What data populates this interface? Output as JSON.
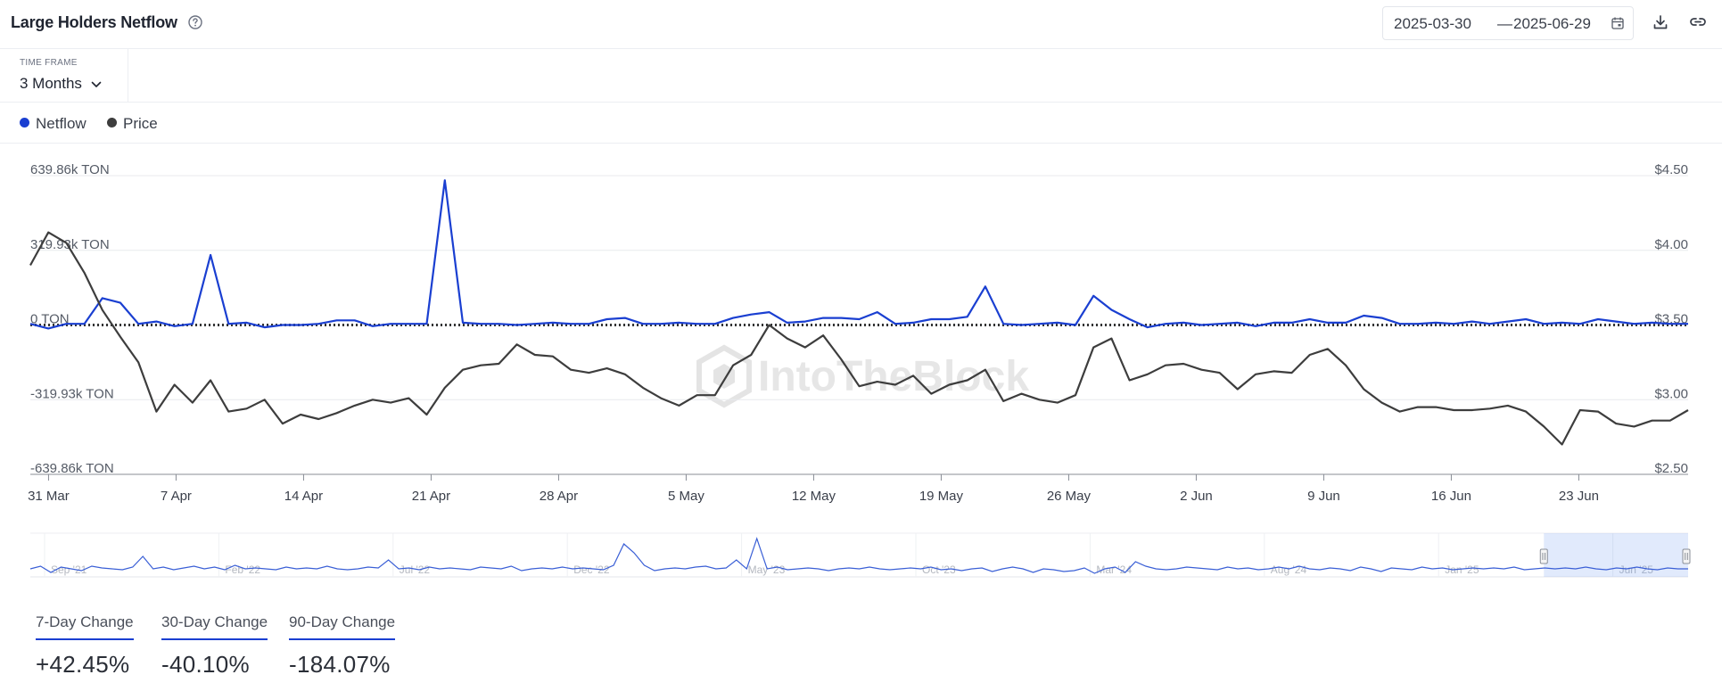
{
  "header": {
    "title": "Large Holders Netflow",
    "date_start": "2025-03-30",
    "date_sep": "—",
    "date_end": "2025-06-29"
  },
  "timeframe": {
    "label": "TIME FRAME",
    "value": "3 Months"
  },
  "legend": [
    {
      "name": "Netflow",
      "color": "#1a3fd1"
    },
    {
      "name": "Price",
      "color": "#3d3d3d"
    }
  ],
  "watermark": "IntoTheBlock",
  "colors": {
    "netflow": "#1a3fd1",
    "price": "#3d3d3d",
    "grid": "#e8eaee",
    "zero_line": "#333333"
  },
  "icons": [
    "help-circle-icon",
    "calendar-icon",
    "download-icon",
    "link-icon",
    "chevron-down-icon"
  ],
  "chart_data": {
    "type": "line",
    "x_start": "2025-03-30",
    "x_end": "2025-06-29",
    "x_ticks": [
      "31 Mar",
      "7 Apr",
      "14 Apr",
      "21 Apr",
      "28 Apr",
      "5 May",
      "12 May",
      "19 May",
      "26 May",
      "2 Jun",
      "9 Jun",
      "16 Jun",
      "23 Jun"
    ],
    "y_left_ticks": [
      "639.86k TON",
      "319.93k TON",
      "0 TON",
      "-319.93k TON",
      "-639.86k TON"
    ],
    "y_left_range": [
      -639.86,
      639.86
    ],
    "y_left_unit": "k TON",
    "y_right_ticks": [
      "$4.50",
      "$4.00",
      "$3.50",
      "$3.00",
      "$2.50"
    ],
    "y_right_range": [
      2.5,
      4.5
    ],
    "grid": true,
    "series": [
      {
        "name": "Netflow",
        "axis": "left",
        "values": [
          5,
          -15,
          5,
          5,
          115,
          95,
          5,
          15,
          -5,
          5,
          300,
          5,
          10,
          -10,
          0,
          0,
          5,
          20,
          20,
          -5,
          5,
          5,
          5,
          620,
          10,
          5,
          5,
          0,
          5,
          10,
          5,
          5,
          25,
          30,
          5,
          5,
          10,
          5,
          5,
          30,
          45,
          55,
          10,
          15,
          30,
          30,
          25,
          55,
          5,
          10,
          25,
          25,
          35,
          165,
          5,
          0,
          5,
          10,
          0,
          125,
          65,
          25,
          -10,
          5,
          10,
          0,
          5,
          10,
          -5,
          10,
          10,
          25,
          10,
          10,
          40,
          30,
          5,
          5,
          10,
          5,
          15,
          5,
          15,
          25,
          5,
          10,
          5,
          25,
          15,
          5,
          10,
          5,
          5
        ]
      },
      {
        "name": "Price",
        "axis": "right",
        "values": [
          3.9,
          4.12,
          4.05,
          3.85,
          3.6,
          3.42,
          3.25,
          2.92,
          3.1,
          2.98,
          3.13,
          2.92,
          2.94,
          3.0,
          2.84,
          2.9,
          2.87,
          2.91,
          2.96,
          3.0,
          2.98,
          3.01,
          2.9,
          3.08,
          3.2,
          3.23,
          3.24,
          3.37,
          3.3,
          3.29,
          3.2,
          3.18,
          3.21,
          3.17,
          3.08,
          3.01,
          2.96,
          3.03,
          3.03,
          3.23,
          3.3,
          3.5,
          3.41,
          3.35,
          3.43,
          3.27,
          3.09,
          3.12,
          3.1,
          3.16,
          3.04,
          3.1,
          3.13,
          3.2,
          2.99,
          3.04,
          3.0,
          2.98,
          3.03,
          3.35,
          3.41,
          3.13,
          3.17,
          3.23,
          3.24,
          3.2,
          3.18,
          3.07,
          3.17,
          3.19,
          3.18,
          3.3,
          3.34,
          3.23,
          3.07,
          2.98,
          2.92,
          2.95,
          2.95,
          2.93,
          2.93,
          2.94,
          2.96,
          2.92,
          2.82,
          2.7,
          2.93,
          2.92,
          2.84,
          2.82,
          2.86,
          2.86,
          2.93
        ]
      }
    ]
  },
  "navigator": {
    "labels": [
      "Sep '21",
      "Feb '22",
      "Jul '22",
      "Dec '22",
      "May '23",
      "Oct '23",
      "Mar '24",
      "Aug '24",
      "Jan '25",
      "Jun '25"
    ],
    "selection_range": [
      0.913,
      1.0
    ],
    "values": [
      0,
      3,
      -4,
      2,
      0,
      -2,
      3,
      1,
      0,
      -1,
      2,
      14,
      0,
      2,
      -1,
      1,
      3,
      0,
      2,
      -1,
      4,
      0,
      1,
      0,
      -1,
      2,
      0,
      1,
      0,
      3,
      0,
      -1,
      0,
      2,
      1,
      10,
      0,
      1,
      -1,
      2,
      0,
      1,
      0,
      -1,
      2,
      1,
      0,
      3,
      -2,
      0,
      1,
      0,
      2,
      0,
      1,
      0,
      -1,
      4,
      28,
      18,
      4,
      -2,
      0,
      1,
      0,
      2,
      3,
      0,
      1,
      10,
      0,
      34,
      0,
      2,
      -1,
      0,
      1,
      0,
      -2,
      0,
      1,
      0,
      2,
      0,
      -1,
      0,
      1,
      0,
      2,
      -1,
      0,
      -2,
      0,
      1,
      -3,
      0,
      2,
      0,
      -4,
      0,
      -1,
      -3,
      -2,
      1,
      -5,
      0,
      2,
      -4,
      8,
      3,
      0,
      -1,
      0,
      2,
      1,
      0,
      -1,
      2,
      0,
      1,
      -1,
      0,
      2,
      0,
      3,
      0,
      -1,
      1,
      0,
      -2,
      2,
      0,
      -3,
      1,
      0,
      -1,
      2,
      0,
      1,
      -1,
      0,
      1,
      0,
      1,
      0,
      2,
      -1,
      0,
      1,
      0,
      1,
      0,
      2,
      0,
      -1,
      1,
      0,
      2,
      0,
      -1,
      1,
      0,
      0
    ]
  },
  "stats": [
    {
      "label": "7-Day Change",
      "value": "+42.45%"
    },
    {
      "label": "30-Day Change",
      "value": "-40.10%"
    },
    {
      "label": "90-Day Change",
      "value": "-184.07%"
    }
  ]
}
